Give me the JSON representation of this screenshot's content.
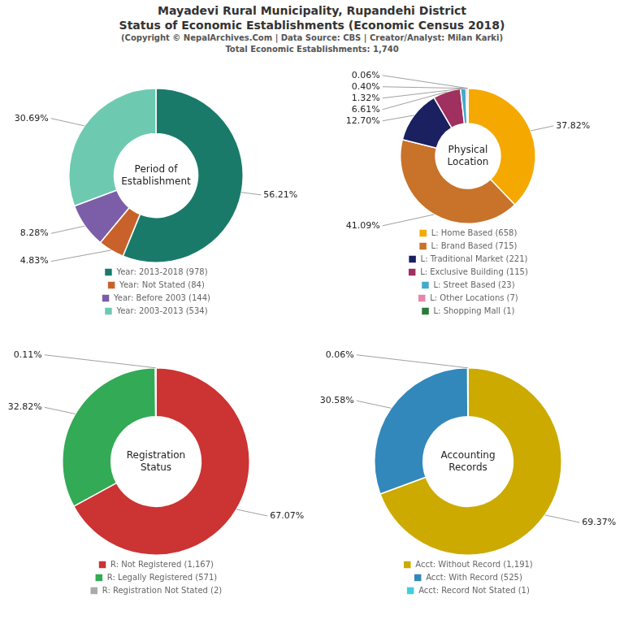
{
  "title": [
    "Mayadevi Rural Municipality, Rupandehi District",
    "Status of Economic Establishments (Economic Census 2018)"
  ],
  "subtitle": [
    "(Copyright © NepalArchives.Com | Data Source: CBS | Creator/Analyst: Milan Karki)",
    "Total Economic Establishments: 1,740"
  ],
  "chart_data": [
    {
      "type": "doughnut",
      "title": "Period of\nEstablishment",
      "categories": [
        "Year: 2013-2018 (978)",
        "Year: Not Stated (84)",
        "Year: Before 2003 (144)",
        "Year: 2003-2013 (534)"
      ],
      "values": [
        56.21,
        4.83,
        8.28,
        30.69
      ],
      "value_labels": [
        "56.21%",
        "4.83%",
        "8.28%",
        "30.69%"
      ],
      "colors": [
        "#1a7a6a",
        "#c8622a",
        "#7b5ea7",
        "#6dcab0"
      ],
      "data_labels": true,
      "legend": "bottom"
    },
    {
      "type": "doughnut",
      "title": "Physical\nLocation",
      "categories": [
        "L: Home Based (658)",
        "L: Brand Based (715)",
        "L: Traditional Market (221)",
        "L: Exclusive Building (115)",
        "L: Street Based (23)",
        "L: Other Locations (7)",
        "L: Shopping Mall (1)"
      ],
      "values": [
        37.82,
        41.09,
        12.7,
        6.61,
        1.32,
        0.4,
        0.06
      ],
      "value_labels": [
        "37.82%",
        "41.09%",
        "12.70%",
        "6.61%",
        "1.32%",
        "0.40%",
        "0.06%"
      ],
      "colors": [
        "#f5a800",
        "#c8722a",
        "#1a2060",
        "#a03060",
        "#44aacc",
        "#e888a8",
        "#2a7a3a"
      ],
      "data_labels": true,
      "legend": "bottom"
    },
    {
      "type": "doughnut",
      "title": "Registration\nStatus",
      "categories": [
        "R: Not Registered (1,167)",
        "R: Legally Registered (571)",
        "R: Registration Not Stated (2)"
      ],
      "values": [
        67.07,
        32.82,
        0.11
      ],
      "value_labels": [
        "67.07%",
        "32.82%",
        "0.11%"
      ],
      "colors": [
        "#cc3333",
        "#33aa55",
        "#aaaaaa"
      ],
      "data_labels": true,
      "legend": "bottom"
    },
    {
      "type": "doughnut",
      "title": "Accounting\nRecords",
      "categories": [
        "Acct: Without Record (1,191)",
        "Acct: With Record (525)",
        "Acct: Record Not Stated (1)"
      ],
      "values": [
        69.37,
        30.58,
        0.06
      ],
      "value_labels": [
        "69.37%",
        "30.58%",
        "0.06%"
      ],
      "colors": [
        "#ccaa00",
        "#3388bb",
        "#44ccdd"
      ],
      "data_labels": true,
      "legend": "bottom"
    }
  ]
}
